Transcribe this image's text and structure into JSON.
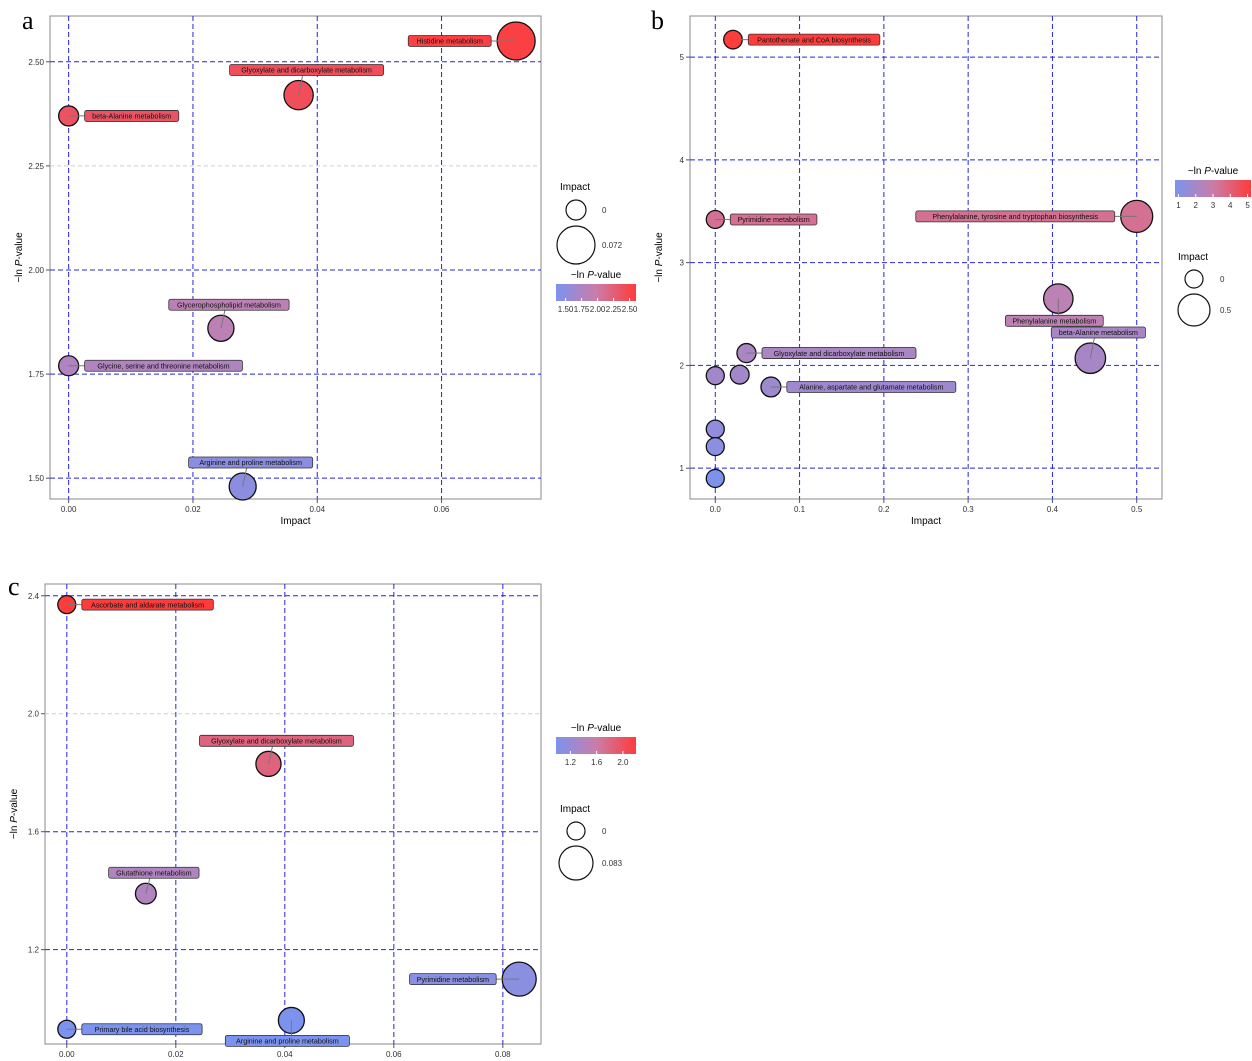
{
  "panels": [
    {
      "letter": "a",
      "legend_impact_title": "Impact",
      "legend_color_title_prefix": "−ln ",
      "legend_color_title_italic": "P",
      "legend_color_title_suffix": "-value"
    },
    {
      "letter": "b",
      "legend_impact_title": "Impact",
      "legend_color_title_prefix": "−ln ",
      "legend_color_title_italic": "P",
      "legend_color_title_suffix": "-value"
    },
    {
      "letter": "c",
      "legend_impact_title": "Impact",
      "legend_color_title_prefix": "−ln ",
      "legend_color_title_italic": "P",
      "legend_color_title_suffix": "-value"
    }
  ],
  "colors": {
    "low": "#7b93ee",
    "mid": "#c97da8",
    "high": "#ff3b3b",
    "grid_major": "#2525e0",
    "grid_minor": "#cfcfcf",
    "axis_frame": "#8a8a8a"
  },
  "chart_data": [
    {
      "type": "scatter",
      "title": "",
      "xlabel": "Impact",
      "ylabel_prefix": "−ln ",
      "ylabel_italic": "P",
      "ylabel_suffix": "-value",
      "xlim": [
        -0.003,
        0.076
      ],
      "ylim": [
        1.45,
        2.61
      ],
      "xticks": [
        0.0,
        0.02,
        0.04,
        0.06
      ],
      "xtick_labels": [
        "0.00",
        "0.02",
        "0.04",
        "0.06"
      ],
      "yticks": [
        1.5,
        1.75,
        2.0,
        2.25,
        2.5
      ],
      "ytick_labels": [
        "1.50",
        "1.75",
        "2.00",
        "2.25",
        "2.50"
      ],
      "major_grid_y": [
        1.5,
        1.75,
        2.0,
        2.5
      ],
      "minor_grid_y": [
        2.25
      ],
      "size_legend": {
        "values": [
          0,
          0.072
        ],
        "labels": [
          "0",
          "0.072"
        ],
        "max": 0.072
      },
      "color_scale": {
        "min": 1.35,
        "max": 2.6,
        "ticks": [
          1.5,
          1.75,
          2.0,
          2.25,
          2.5
        ],
        "tick_labels": [
          "1.50",
          "1.75",
          "2.00",
          "2.25",
          "2.50"
        ]
      },
      "points": [
        {
          "name": "Histidine metabolism",
          "x": 0.072,
          "y": 2.55,
          "label_side": "left"
        },
        {
          "name": "Glyoxylate and dicarboxylate metabolism",
          "x": 0.037,
          "y": 2.42,
          "label_side": "above"
        },
        {
          "name": "beta-Alanine metabolism",
          "x": 0.0,
          "y": 2.37,
          "label_side": "right"
        },
        {
          "name": "Glycerophospholipid metabolism",
          "x": 0.0245,
          "y": 1.86,
          "label_side": "above"
        },
        {
          "name": "Glycine, serine and threonine metabolism",
          "x": 0.0,
          "y": 1.77,
          "label_side": "right"
        },
        {
          "name": "Arginine and proline metabolism",
          "x": 0.028,
          "y": 1.48,
          "label_side": "above"
        }
      ]
    },
    {
      "type": "scatter",
      "title": "",
      "xlabel": "Impact",
      "ylabel_prefix": "−ln ",
      "ylabel_italic": "P",
      "ylabel_suffix": "-value",
      "xlim": [
        -0.03,
        0.53
      ],
      "ylim": [
        0.7,
        5.4
      ],
      "xticks": [
        0.0,
        0.1,
        0.2,
        0.3,
        0.4,
        0.5
      ],
      "xtick_labels": [
        "0.0",
        "0.1",
        "0.2",
        "0.3",
        "0.4",
        "0.5"
      ],
      "yticks": [
        1,
        2,
        3,
        4,
        5
      ],
      "ytick_labels": [
        "1",
        "2",
        "3",
        "4",
        "5"
      ],
      "major_grid_y": [
        1,
        2,
        3,
        4,
        5
      ],
      "minor_grid_y": [],
      "size_legend": {
        "values": [
          0,
          0.5
        ],
        "labels": [
          "0",
          "0.5"
        ],
        "max": 0.5
      },
      "color_scale": {
        "min": 0.8,
        "max": 5.2,
        "ticks": [
          1,
          2,
          3,
          4,
          5
        ],
        "tick_labels": [
          "1",
          "2",
          "3",
          "4",
          "5"
        ]
      },
      "points": [
        {
          "name": "Pantothenate and CoA biosynthesis",
          "x": 0.021,
          "y": 5.17,
          "label_side": "right"
        },
        {
          "name": "Pyrimidine metabolism",
          "x": 0.0,
          "y": 3.42,
          "label_side": "right"
        },
        {
          "name": "Phenylalanine, tyrosine and tryptophan biosynthesis",
          "x": 0.5,
          "y": 3.45,
          "label_side": "left"
        },
        {
          "name": "Phenylalanine metabolism",
          "x": 0.407,
          "y": 2.65,
          "label_side": "below"
        },
        {
          "name": "beta-Alanine metabolism",
          "x": 0.445,
          "y": 2.07,
          "label_side": "above"
        },
        {
          "name": "Glyoxylate and dicarboxylate metabolism",
          "x": 0.037,
          "y": 2.12,
          "label_side": "right"
        },
        {
          "name": "Alanine, aspartate and glutamate metabolism",
          "x": 0.066,
          "y": 1.79,
          "label_side": "right"
        },
        {
          "name": "",
          "x": 0.029,
          "y": 1.91
        },
        {
          "name": "",
          "x": 0.0,
          "y": 1.9
        },
        {
          "name": "",
          "x": 0.0,
          "y": 1.38
        },
        {
          "name": "",
          "x": 0.0,
          "y": 1.21
        },
        {
          "name": "",
          "x": 0.0,
          "y": 0.9
        }
      ]
    },
    {
      "type": "scatter",
      "title": "",
      "xlabel": "Impact",
      "ylabel_prefix": "−ln ",
      "ylabel_italic": "P",
      "ylabel_suffix": "-value",
      "xlim": [
        -0.004,
        0.087
      ],
      "ylim": [
        0.88,
        2.44
      ],
      "xticks": [
        0.0,
        0.02,
        0.04,
        0.06,
        0.08
      ],
      "xtick_labels": [
        "0.00",
        "0.02",
        "0.04",
        "0.06",
        "0.08"
      ],
      "yticks": [
        1.2,
        1.6,
        2.0,
        2.4
      ],
      "ytick_labels": [
        "1.2",
        "1.6",
        "2.0",
        "2.4"
      ],
      "major_grid_y": [
        1.2,
        1.6,
        2.4
      ],
      "minor_grid_y": [
        2.0
      ],
      "size_legend": {
        "values": [
          0,
          0.083
        ],
        "labels": [
          "0",
          "0.083"
        ],
        "max": 0.083
      },
      "color_scale": {
        "min": 0.98,
        "max": 2.2,
        "ticks": [
          1.2,
          1.6,
          2.0
        ],
        "tick_labels": [
          "1.2",
          "1.6",
          "2.0"
        ]
      },
      "points": [
        {
          "name": "Ascorbate and aldarate metabolism",
          "x": 0.0,
          "y": 2.37,
          "label_side": "right"
        },
        {
          "name": "Glyoxylate and dicarboxylate metabolism",
          "x": 0.037,
          "y": 1.83,
          "label_side": "above"
        },
        {
          "name": "Glutathione metabolism",
          "x": 0.0145,
          "y": 1.39,
          "label_side": "above"
        },
        {
          "name": "Pyrimidine metabolism",
          "x": 0.083,
          "y": 1.1,
          "label_side": "left"
        },
        {
          "name": "Arginine and proline metabolism",
          "x": 0.0412,
          "y": 0.96,
          "label_side": "below"
        },
        {
          "name": "Primary bile acid biosynthesis",
          "x": 0.0,
          "y": 0.93,
          "label_side": "right"
        }
      ]
    }
  ]
}
